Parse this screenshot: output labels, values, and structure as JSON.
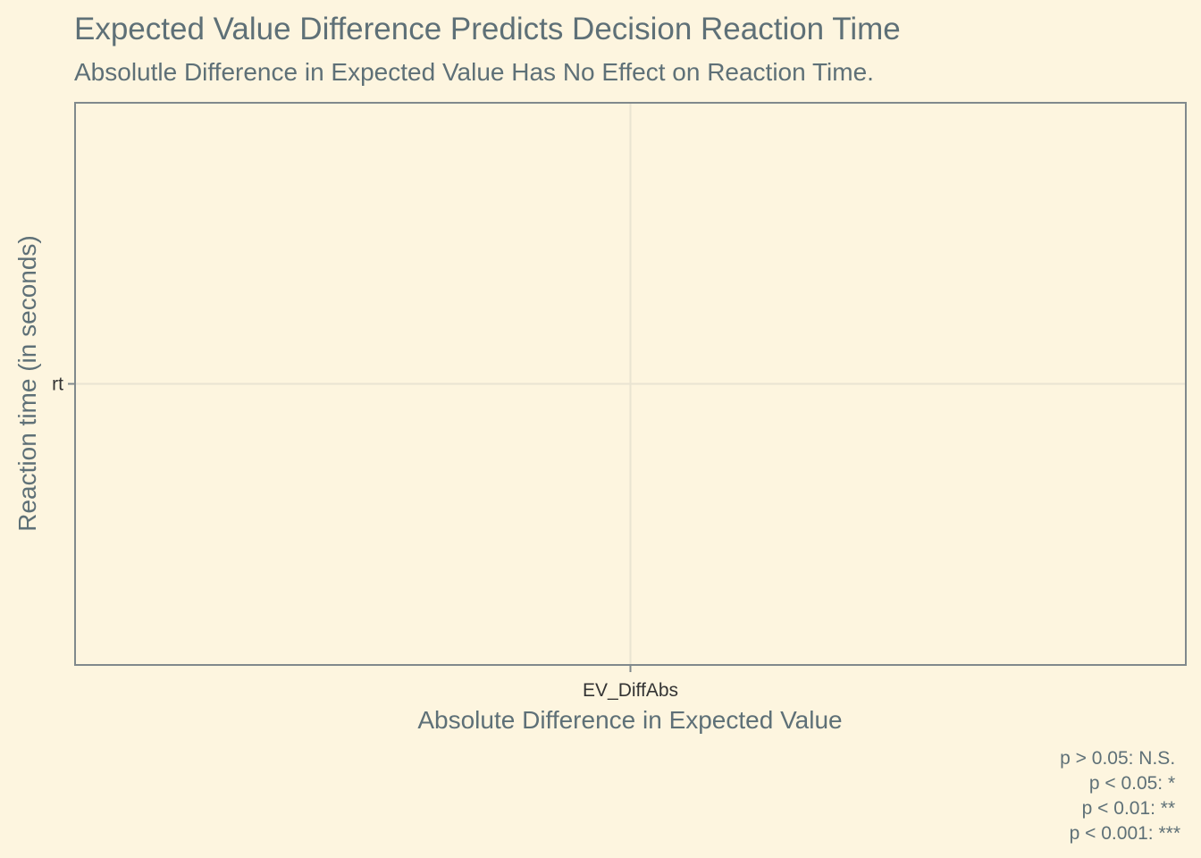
{
  "chart_data": {
    "type": "scatter",
    "title": "Expected Value Difference Predicts Decision Reaction Time",
    "subtitle": "Absolutle Difference in Expected Value Has No Effect on Reaction Time.",
    "xlabel": "Absolute Difference in Expected Value",
    "ylabel": "Reaction time (in seconds)",
    "x_categories": [
      "EV_DiffAbs"
    ],
    "y_categories": [
      "rt"
    ],
    "series": [],
    "grid": true,
    "caption_lines": [
      "p > 0.05: N.S.",
      "p < 0.05: *",
      "p < 0.01: **",
      "p < 0.001: ***"
    ],
    "colors": {
      "background": "#FDF5DF",
      "text": "#5E7077",
      "tick_text": "#333333",
      "grid": "#E9E4D2",
      "axis": "#80898C"
    }
  }
}
